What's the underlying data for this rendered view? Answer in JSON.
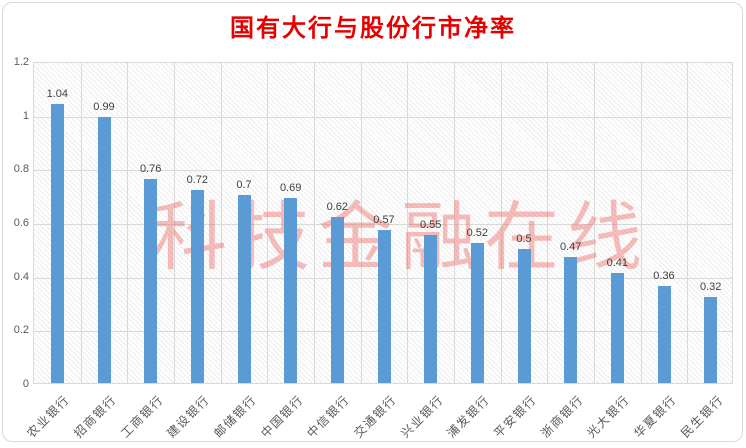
{
  "title": "国有大行与股份行市净率",
  "watermark": "科技金融在线",
  "colors": {
    "bar": "#5b9bd5",
    "title": "#e60000",
    "grid": "#d9d9d9",
    "axis_text": "#595959",
    "watermark": "#ec6e6a"
  },
  "chart_data": {
    "type": "bar",
    "title": "国有大行与股份行市净率",
    "categories": [
      "农业银行",
      "招商银行",
      "工商银行",
      "建设银行",
      "邮储银行",
      "中国银行",
      "中信银行",
      "交通银行",
      "兴业银行",
      "浦发银行",
      "平安银行",
      "浙商银行",
      "光大银行",
      "华夏银行",
      "民生银行"
    ],
    "values": [
      1.04,
      0.99,
      0.76,
      0.72,
      0.7,
      0.69,
      0.62,
      0.57,
      0.55,
      0.52,
      0.5,
      0.47,
      0.41,
      0.36,
      0.32
    ],
    "data_labels": [
      "1.04",
      "0.99",
      "0.76",
      "0.72",
      "0.7",
      "0.69",
      "0.62",
      "0.57",
      "0.55",
      "0.52",
      "0.5",
      "0.47",
      "0.41",
      "0.36",
      "0.32"
    ],
    "xlabel": "",
    "ylabel": "",
    "ylim": [
      0,
      1.2
    ],
    "yticks": [
      0,
      0.2,
      0.4,
      0.6,
      0.8,
      1,
      1.2
    ],
    "ytick_labels": [
      "0",
      "0.2",
      "0.4",
      "0.6",
      "0.8",
      "1",
      "1.2"
    ],
    "grid": true,
    "legend": false,
    "bar_color": "#5b9bd5"
  }
}
